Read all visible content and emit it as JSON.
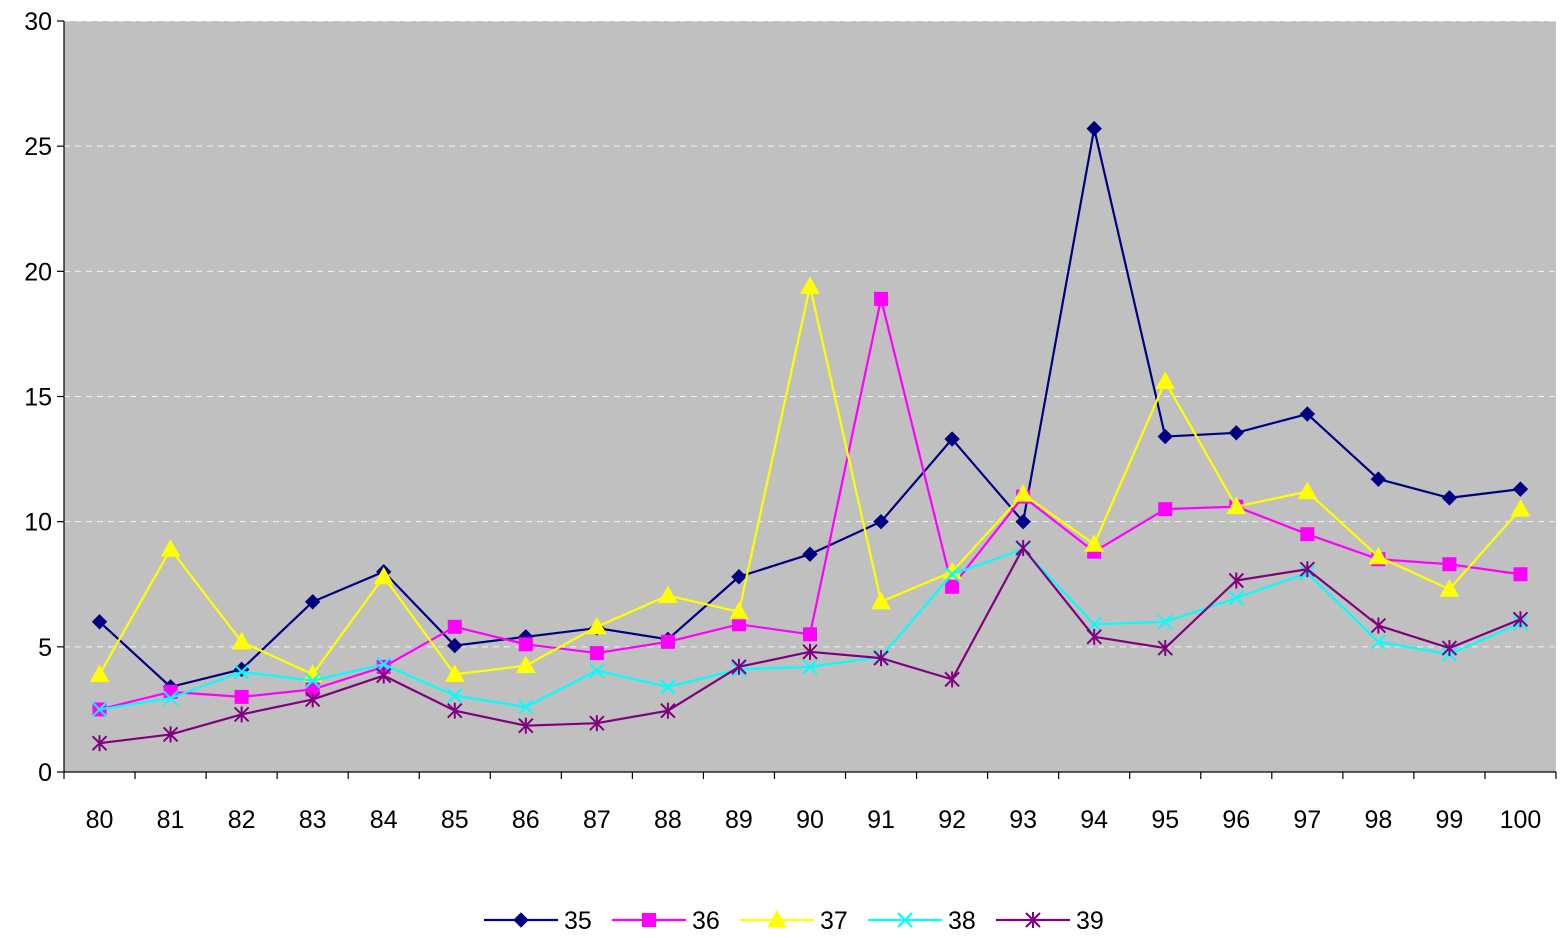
{
  "chart_data": {
    "type": "line",
    "title": "",
    "xlabel": "",
    "ylabel": "",
    "categories": [
      "80",
      "81",
      "82",
      "83",
      "84",
      "85",
      "86",
      "87",
      "88",
      "89",
      "90",
      "91",
      "92",
      "93",
      "94",
      "95",
      "96",
      "97",
      "98",
      "99",
      "100"
    ],
    "ylim": [
      0,
      30
    ],
    "yticks": [
      "0",
      "5",
      "10",
      "15",
      "20",
      "25",
      "30"
    ],
    "grid": true,
    "legend_position": "bottom",
    "plot_background": "#c0c0c0",
    "series": [
      {
        "name": "35",
        "color": "#000080",
        "marker": "diamond",
        "values": [
          6.0,
          3.4,
          4.1,
          6.8,
          8.0,
          5.05,
          5.4,
          5.75,
          5.3,
          7.8,
          8.7,
          10.0,
          13.3,
          10.0,
          25.7,
          13.4,
          13.55,
          14.3,
          11.7,
          10.95,
          11.3
        ]
      },
      {
        "name": "36",
        "color": "#ff00ff",
        "marker": "square",
        "values": [
          2.5,
          3.2,
          3.0,
          3.3,
          4.2,
          5.8,
          5.1,
          4.75,
          5.2,
          5.9,
          5.5,
          18.9,
          7.4,
          11.0,
          8.8,
          10.5,
          10.6,
          9.5,
          8.5,
          8.3,
          7.9
        ]
      },
      {
        "name": "37",
        "color": "#ffff00",
        "marker": "triangle",
        "values": [
          3.9,
          8.9,
          5.2,
          3.9,
          7.8,
          3.9,
          4.25,
          5.8,
          7.05,
          6.4,
          19.4,
          6.8,
          8.0,
          11.1,
          9.1,
          15.6,
          10.6,
          11.2,
          8.6,
          7.3,
          10.5
        ]
      },
      {
        "name": "38",
        "color": "#00ffff",
        "marker": "x",
        "values": [
          2.5,
          2.95,
          4.0,
          3.65,
          4.3,
          3.05,
          2.6,
          4.05,
          3.4,
          4.1,
          4.2,
          4.6,
          7.9,
          8.9,
          5.9,
          6.0,
          6.95,
          7.95,
          5.2,
          4.7,
          5.95
        ]
      },
      {
        "name": "39",
        "color": "#800080",
        "marker": "asterisk",
        "values": [
          1.15,
          1.5,
          2.3,
          2.9,
          3.85,
          2.45,
          1.85,
          1.95,
          2.45,
          4.2,
          4.8,
          4.55,
          3.7,
          8.95,
          5.4,
          4.95,
          7.65,
          8.1,
          5.85,
          4.95,
          6.1
        ]
      }
    ]
  }
}
